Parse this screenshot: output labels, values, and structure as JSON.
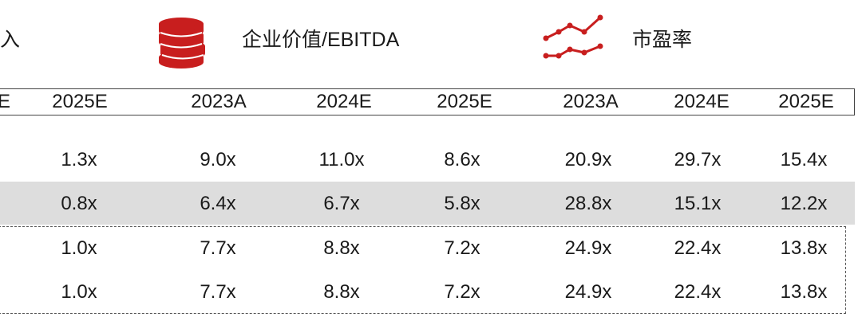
{
  "header": {
    "col1_fragment": "入",
    "col2_title": "企业价值/EBITDA",
    "col3_title": "市盈率",
    "col2_icon": "coin-stack-icon",
    "col3_icon": "line-trend-icon",
    "accent_color": "#c81e1e"
  },
  "years": [
    "E",
    "2025E",
    "2023A",
    "2024E",
    "2025E",
    "2023A",
    "2024E",
    "2025E"
  ],
  "rows": [
    [
      "1.3x",
      "9.0x",
      "11.0x",
      "8.6x",
      "20.9x",
      "29.7x",
      "15.4x"
    ],
    [
      "0.8x",
      "6.4x",
      "6.7x",
      "5.8x",
      "28.8x",
      "15.1x",
      "12.2x"
    ],
    [
      "1.0x",
      "7.7x",
      "8.8x",
      "7.2x",
      "24.9x",
      "22.4x",
      "13.8x"
    ],
    [
      "1.0x",
      "7.7x",
      "8.8x",
      "7.2x",
      "24.9x",
      "22.4x",
      "13.8x"
    ]
  ]
}
